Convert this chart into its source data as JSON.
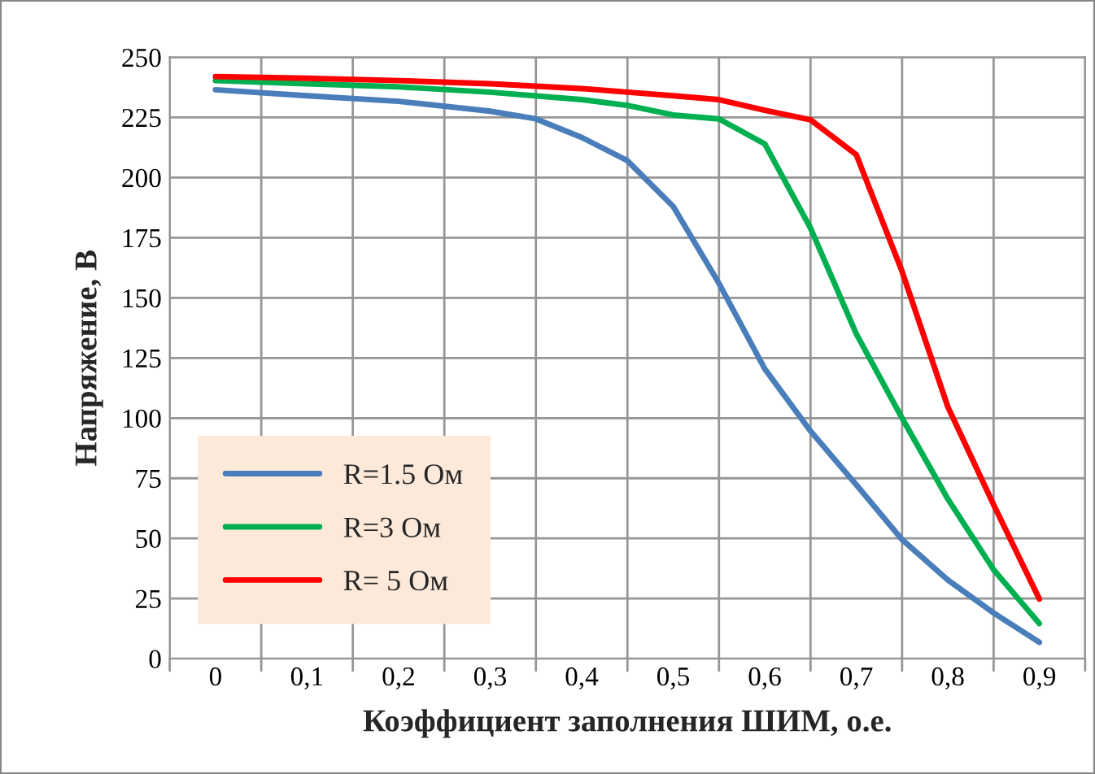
{
  "chart_data": {
    "type": "line",
    "xlabel": "Коэффициент заполнения ШИМ, о.е.",
    "ylabel": "Напряжение, В",
    "xlim": [
      -0.05,
      0.95
    ],
    "ylim": [
      0,
      250
    ],
    "xticks": [
      {
        "value": -0.05,
        "label": null
      },
      {
        "value": 0,
        "label": "0"
      },
      {
        "value": 0.05,
        "label": null
      },
      {
        "value": 0.1,
        "label": "0,1"
      },
      {
        "value": 0.15,
        "label": null
      },
      {
        "value": 0.2,
        "label": "0,2"
      },
      {
        "value": 0.25,
        "label": null
      },
      {
        "value": 0.3,
        "label": "0,3"
      },
      {
        "value": 0.35,
        "label": null
      },
      {
        "value": 0.4,
        "label": "0,4"
      },
      {
        "value": 0.45,
        "label": null
      },
      {
        "value": 0.5,
        "label": "0,5"
      },
      {
        "value": 0.55,
        "label": null
      },
      {
        "value": 0.6,
        "label": "0,6"
      },
      {
        "value": 0.65,
        "label": null
      },
      {
        "value": 0.7,
        "label": "0,7"
      },
      {
        "value": 0.75,
        "label": null
      },
      {
        "value": 0.8,
        "label": "0,8"
      },
      {
        "value": 0.85,
        "label": null
      },
      {
        "value": 0.9,
        "label": "0,9"
      },
      {
        "value": 0.95,
        "label": null
      }
    ],
    "yticks": [
      0,
      25,
      50,
      75,
      100,
      125,
      150,
      175,
      200,
      225,
      250
    ],
    "grid": true,
    "legend": "bottom left",
    "marker": "none",
    "line_style": "solid",
    "x": [
      0,
      0.1,
      0.2,
      0.3,
      0.35,
      0.4,
      0.45,
      0.5,
      0.55,
      0.6,
      0.65,
      0.7,
      0.75,
      0.8,
      0.85,
      0.9
    ],
    "series": [
      {
        "name": "R=1.5 Ом",
        "color": "#4a7ebb",
        "values": [
          236.5,
          234,
          231.7,
          227.6,
          224.4,
          216.7,
          207,
          188,
          156,
          120.5,
          94.6,
          72.3,
          49.5,
          32.7,
          19,
          6.8
        ]
      },
      {
        "name": "R=3 Ом",
        "color": "#00b050",
        "x": [
          0,
          0.1,
          0.2,
          0.3,
          0.4,
          0.45,
          0.5,
          0.55,
          0.6,
          0.65,
          0.7,
          0.75,
          0.8,
          0.85,
          0.9
        ],
        "values": [
          240.3,
          239,
          237.7,
          235.5,
          232.4,
          230,
          226,
          224.4,
          214,
          179,
          135,
          100,
          66.4,
          37,
          14.6
        ]
      },
      {
        "name": "R= 5 Ом",
        "color": "#ff0000",
        "x": [
          0,
          0.1,
          0.2,
          0.3,
          0.4,
          0.5,
          0.55,
          0.6,
          0.65,
          0.7,
          0.75,
          0.8,
          0.85,
          0.9
        ],
        "values": [
          242,
          241.3,
          240.3,
          239,
          237,
          234,
          232.4,
          228,
          224,
          209.5,
          161,
          104.7,
          64,
          24.8
        ]
      }
    ]
  }
}
